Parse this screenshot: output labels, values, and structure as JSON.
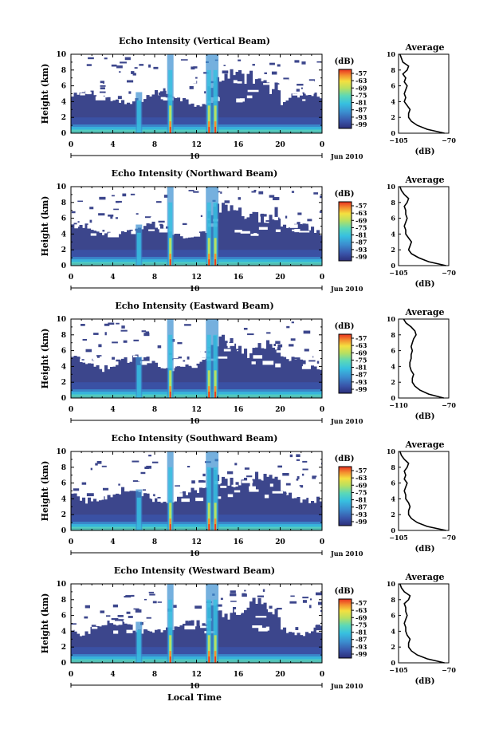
{
  "figure": {
    "xlabel": "Local Time",
    "x_ticks": [
      "0",
      "4",
      "8",
      "12",
      "16",
      "20",
      "0"
    ],
    "ylabel": "Height (km)",
    "y_ticks": [
      "0",
      "2",
      "4",
      "6",
      "8",
      "10"
    ],
    "date_day": "10",
    "date_month_year": "Jun 2010",
    "cbar_unit": "(dB)",
    "cbar_ticks": [
      "-57",
      "-63",
      "-69",
      "-75",
      "-81",
      "-87",
      "-93",
      "-99"
    ],
    "avg_title": "Average",
    "avg_xlabel": "(dB)",
    "colors": {
      "background_echo": "#3c468c",
      "colormap": [
        "#2c2f7a",
        "#3953a8",
        "#3b8fd0",
        "#37c0e0",
        "#5ad8b8",
        "#b8e060",
        "#f4e040",
        "#f49030",
        "#e83020"
      ]
    }
  },
  "chart_data": [
    {
      "type": "heatmap",
      "title": "Echo Intensity (Vertical Beam)",
      "xlabel": "Local Time",
      "ylabel": "Height (km)",
      "xlim": [
        0,
        24
      ],
      "ylim": [
        0,
        10
      ],
      "colorbar": {
        "unit": "dB",
        "range": [
          -99,
          -57
        ]
      },
      "features": {
        "rain_columns_local_time": [
          6.5,
          9.5,
          13.2,
          13.8
        ],
        "clutter_top_km": 4.0
      },
      "average_profile": {
        "xlim": [
          -105,
          -70
        ],
        "x_tick_labels": [
          "-105",
          "-70"
        ],
        "height_km": [
          0,
          0.5,
          1,
          1.5,
          2,
          2.5,
          3,
          3.5,
          4,
          4.5,
          5,
          5.5,
          6,
          6.5,
          7,
          7.5,
          8,
          8.5,
          9,
          9.5,
          10
        ],
        "db": [
          -73,
          -85,
          -92,
          -96,
          -98,
          -98,
          -97,
          -99,
          -101,
          -100,
          -101,
          -100,
          -99,
          -101,
          -100,
          -102,
          -99,
          -98,
          -102,
          -103,
          -104
        ]
      }
    },
    {
      "type": "heatmap",
      "title": "Echo Intensity (Northward Beam)",
      "xlabel": "Local Time",
      "ylabel": "Height (km)",
      "xlim": [
        0,
        24
      ],
      "ylim": [
        0,
        10
      ],
      "colorbar": {
        "unit": "dB",
        "range": [
          -99,
          -57
        ]
      },
      "features": {
        "rain_columns_local_time": [
          6.5,
          9.5,
          13.2,
          13.8
        ],
        "clutter_top_km": 4.0
      },
      "average_profile": {
        "xlim": [
          -105,
          -70
        ],
        "x_tick_labels": [
          "-105",
          "-70"
        ],
        "height_km": [
          0,
          0.5,
          1,
          1.5,
          2,
          2.5,
          3,
          3.5,
          4,
          4.5,
          5,
          5.5,
          6,
          6.5,
          7,
          7.5,
          8,
          8.5,
          9,
          9.5,
          10
        ],
        "db": [
          -72,
          -84,
          -91,
          -96,
          -98,
          -97,
          -96,
          -98,
          -100,
          -100,
          -101,
          -100,
          -99,
          -100,
          -100,
          -101,
          -99,
          -98,
          -101,
          -103,
          -104
        ]
      }
    },
    {
      "type": "heatmap",
      "title": "Echo Intensity (Eastward Beam)",
      "xlabel": "Local Time",
      "ylabel": "Height (km)",
      "xlim": [
        0,
        24
      ],
      "ylim": [
        0,
        10
      ],
      "colorbar": {
        "unit": "dB",
        "range": [
          -99,
          -57
        ]
      },
      "features": {
        "rain_columns_local_time": [
          6.5,
          9.5,
          13.2,
          13.8
        ],
        "clutter_top_km": 4.0
      },
      "average_profile": {
        "xlim": [
          -110,
          -70
        ],
        "x_tick_labels": [
          "-110",
          "-70"
        ],
        "height_km": [
          0,
          0.5,
          1,
          1.5,
          2,
          2.5,
          3,
          3.5,
          4,
          4.5,
          5,
          5.5,
          6,
          6.5,
          7,
          7.5,
          8,
          8.5,
          9,
          9.5,
          10
        ],
        "db": [
          -74,
          -86,
          -93,
          -97,
          -99,
          -99,
          -98,
          -100,
          -101,
          -101,
          -100,
          -100,
          -99,
          -100,
          -99,
          -98,
          -96,
          -97,
          -100,
          -104,
          -106
        ]
      }
    },
    {
      "type": "heatmap",
      "title": "Echo Intensity (Southward Beam)",
      "xlabel": "Local Time",
      "ylabel": "Height (km)",
      "xlim": [
        0,
        24
      ],
      "ylim": [
        0,
        10
      ],
      "colorbar": {
        "unit": "dB",
        "range": [
          -99,
          -57
        ]
      },
      "features": {
        "rain_columns_local_time": [
          6.5,
          9.5,
          13.2,
          13.8
        ],
        "clutter_top_km": 4.0
      },
      "average_profile": {
        "xlim": [
          -105,
          -70
        ],
        "x_tick_labels": [
          "-105",
          "-70"
        ],
        "height_km": [
          0,
          0.5,
          1,
          1.5,
          2,
          2.5,
          3,
          3.5,
          4,
          4.5,
          5,
          5.5,
          6,
          6.5,
          7,
          7.5,
          8,
          8.5,
          9,
          9.5,
          10
        ],
        "db": [
          -72,
          -85,
          -92,
          -96,
          -98,
          -98,
          -97,
          -98,
          -100,
          -100,
          -101,
          -100,
          -99,
          -101,
          -100,
          -101,
          -99,
          -98,
          -101,
          -103,
          -104
        ]
      }
    },
    {
      "type": "heatmap",
      "title": "Echo Intensity (Westward Beam)",
      "xlabel": "Local Time",
      "ylabel": "Height (km)",
      "xlim": [
        0,
        24
      ],
      "ylim": [
        0,
        10
      ],
      "colorbar": {
        "unit": "dB",
        "range": [
          -99,
          -57
        ]
      },
      "features": {
        "rain_columns_local_time": [
          6.5,
          9.5,
          13.2,
          13.8
        ],
        "clutter_top_km": 4.0
      },
      "average_profile": {
        "xlim": [
          -105,
          -70
        ],
        "x_tick_labels": [
          "-105",
          "-70"
        ],
        "height_km": [
          0,
          0.5,
          1,
          1.5,
          2,
          2.5,
          3,
          3.5,
          4,
          4.5,
          5,
          5.5,
          6,
          6.5,
          7,
          7.5,
          8,
          8.5,
          9,
          9.5,
          10
        ],
        "db": [
          -73,
          -85,
          -92,
          -96,
          -98,
          -98,
          -97,
          -99,
          -100,
          -100,
          -101,
          -100,
          -99,
          -100,
          -100,
          -101,
          -98,
          -97,
          -101,
          -103,
          -104
        ]
      }
    }
  ]
}
